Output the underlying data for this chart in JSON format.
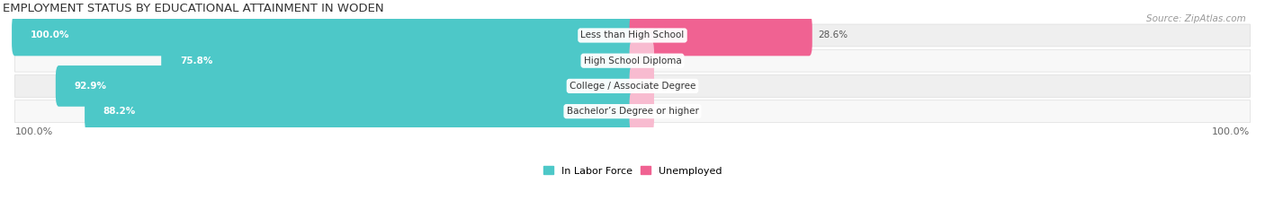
{
  "title": "EMPLOYMENT STATUS BY EDUCATIONAL ATTAINMENT IN WODEN",
  "source": "Source: ZipAtlas.com",
  "categories": [
    "Less than High School",
    "High School Diploma",
    "College / Associate Degree",
    "Bachelor’s Degree or higher"
  ],
  "in_labor_force": [
    100.0,
    75.8,
    92.9,
    88.2
  ],
  "unemployed": [
    28.6,
    0.0,
    0.0,
    0.0
  ],
  "labor_force_color": "#4DC8C8",
  "unemployed_color_strong": "#F06292",
  "unemployed_color_weak": "#F8BBD0",
  "row_bg_even": "#EFEFEF",
  "row_bg_odd": "#F8F8F8",
  "x_left_label": "100.0%",
  "x_right_label": "100.0%",
  "legend_lf": "In Labor Force",
  "legend_unemp": "Unemployed",
  "figsize": [
    14.06,
    2.33
  ],
  "dpi": 100
}
